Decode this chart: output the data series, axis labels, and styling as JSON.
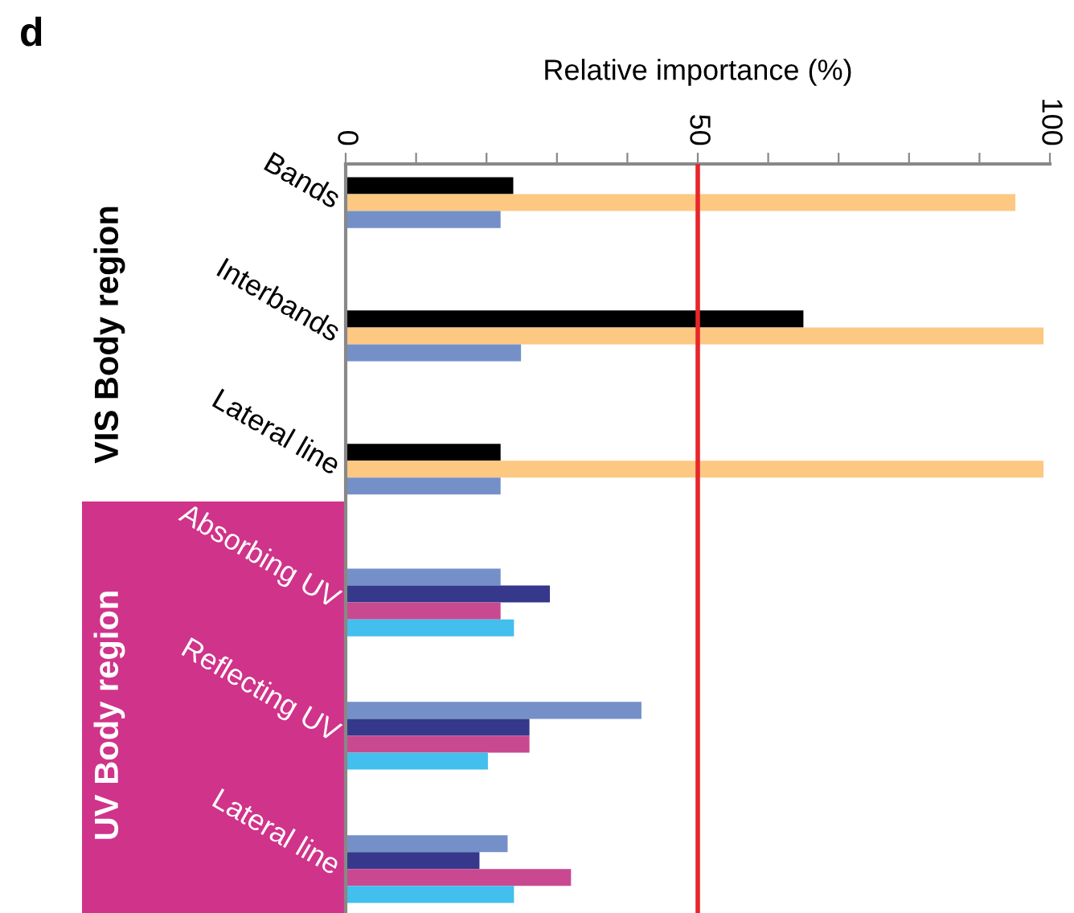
{
  "chart_data": {
    "type": "bar",
    "orientation": "horizontal",
    "xlabel": "Relative importance (%)",
    "categories": [
      "Bands",
      "Interbands",
      "Lateral line",
      "Absorbing UV",
      "Reflecting UV",
      "Lateral line"
    ],
    "series": [
      {
        "color": "#000000",
        "values": [
          23.8,
          65.0,
          22.0,
          null,
          null,
          null
        ]
      },
      {
        "color": "#fcc882",
        "values": [
          95.1,
          99.1,
          99.1,
          null,
          null,
          null
        ]
      },
      {
        "color": "#7590c9",
        "values": [
          22.0,
          24.9,
          22.0,
          22.0,
          42.0,
          23.0
        ]
      },
      {
        "color": "#35388b",
        "values": [
          null,
          null,
          null,
          29.0,
          26.1,
          19.0
        ]
      },
      {
        "color": "#c94990",
        "values": [
          null,
          null,
          null,
          22.0,
          26.1,
          32.0
        ]
      },
      {
        "color": "#42bfec",
        "values": [
          null,
          null,
          null,
          23.9,
          20.2,
          23.9
        ]
      }
    ],
    "xlim": [
      0,
      100
    ],
    "xticks": [
      0,
      {
        "value": 10,
        "label": null
      },
      {
        "value": 20,
        "label": null
      },
      {
        "value": 30,
        "label": null
      },
      {
        "value": 40,
        "label": null
      },
      50,
      {
        "value": 60,
        "label": null
      },
      {
        "value": 70,
        "label": null
      },
      {
        "value": 80,
        "label": null
      },
      {
        "value": 90,
        "label": null
      },
      100
    ],
    "ref_lines": [
      {
        "axis": "x",
        "value": 50,
        "color": "#e8262a"
      }
    ],
    "annotations": [
      "d",
      "VIS Body region",
      "UV Body region"
    ],
    "grid": false,
    "legend": false
  }
}
